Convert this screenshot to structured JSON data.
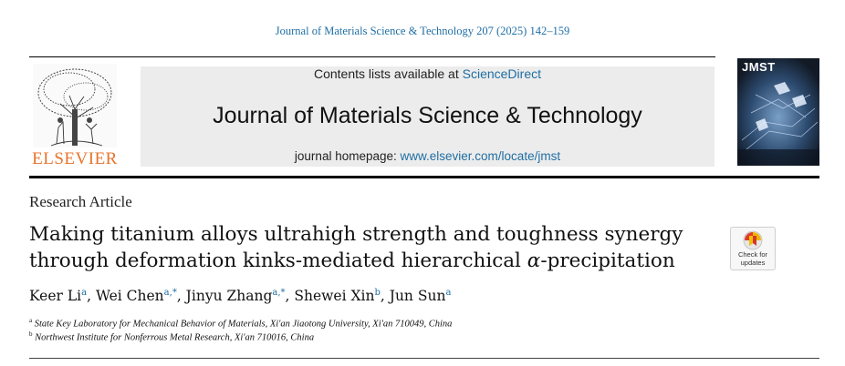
{
  "citation": "Journal of Materials Science & Technology 207 (2025) 142–159",
  "publisher": {
    "wordmark": "ELSEVIER"
  },
  "banner": {
    "contents_prefix": "Contents lists available at ",
    "contents_link": "ScienceDirect",
    "journal_name": "Journal of Materials Science & Technology",
    "homepage_prefix": "journal homepage: ",
    "homepage_link": "www.elsevier.com/locate/jmst"
  },
  "cover": {
    "title": "JMST"
  },
  "article": {
    "type": "Research Article",
    "title_line1": "Making titanium alloys ultrahigh strength and toughness synergy",
    "title_line2_prefix": "through deformation kinks-mediated hierarchical ",
    "title_greek": "α",
    "title_line2_suffix": "-precipitation"
  },
  "check_badge": {
    "line1": "Check for",
    "line2": "updates",
    "icon": "crossmark-icon"
  },
  "authors": [
    {
      "name": "Keer Li",
      "sup": "a",
      "sep": ", "
    },
    {
      "name": "Wei Chen",
      "sup": "a,*",
      "sep": ", "
    },
    {
      "name": "Jinyu Zhang",
      "sup": "a,*",
      "sep": ", "
    },
    {
      "name": "Shewei Xin",
      "sup": "b",
      "sep": ", "
    },
    {
      "name": "Jun Sun",
      "sup": "a",
      "sep": ""
    }
  ],
  "affiliations": [
    {
      "mark": "a",
      "text": "State Key Laboratory for Mechanical Behavior of Materials, Xi'an Jiaotong University, Xi'an 710049, China"
    },
    {
      "mark": "b",
      "text": "Northwest Institute for Nonferrous Metal Research, Xi'an 710016, China"
    }
  ],
  "colors": {
    "link": "#1f6ea3",
    "elsevier_orange": "#e8742b",
    "banner_bg": "#ececec"
  }
}
